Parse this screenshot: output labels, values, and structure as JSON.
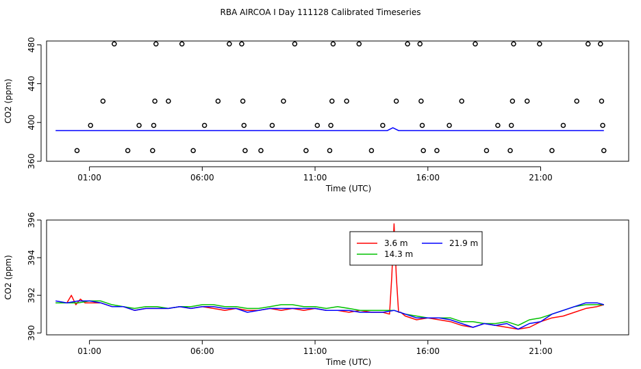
{
  "title": "RBA AIRCOA I  Day 111128  Calibrated Timeseries",
  "colors": {
    "s3_6": "#ff0000",
    "s14_3": "#00c000",
    "s21_9": "#0000ff",
    "axis": "#000000"
  },
  "chart_data": [
    {
      "type": "scatter",
      "xlabel": "Time (UTC)",
      "ylabel": "CO2 (ppm)",
      "xlim": [
        -0.9,
        24.9
      ],
      "ylim": [
        360,
        484
      ],
      "xticks": [
        {
          "v": 1,
          "label": "01:00"
        },
        {
          "v": 6,
          "label": "06:00"
        },
        {
          "v": 11,
          "label": "11:00"
        },
        {
          "v": 16,
          "label": "16:00"
        },
        {
          "v": 21,
          "label": "21:00"
        }
      ],
      "yticks": [
        {
          "v": 360,
          "label": "360"
        },
        {
          "v": 400,
          "label": "400"
        },
        {
          "v": 440,
          "label": "440"
        },
        {
          "v": 480,
          "label": "480"
        }
      ],
      "points": [
        [
          0.45,
          371
        ],
        [
          1.05,
          397
        ],
        [
          1.6,
          422
        ],
        [
          2.1,
          481
        ],
        [
          2.7,
          371
        ],
        [
          3.2,
          397
        ],
        [
          3.8,
          371
        ],
        [
          3.85,
          397
        ],
        [
          3.9,
          422
        ],
        [
          3.95,
          481
        ],
        [
          4.5,
          422
        ],
        [
          5.1,
          481
        ],
        [
          5.6,
          371
        ],
        [
          6.1,
          397
        ],
        [
          6.7,
          422
        ],
        [
          7.2,
          481
        ],
        [
          7.75,
          481
        ],
        [
          7.8,
          422
        ],
        [
          7.85,
          397
        ],
        [
          7.9,
          371
        ],
        [
          8.6,
          371
        ],
        [
          9.1,
          397
        ],
        [
          9.6,
          422
        ],
        [
          10.1,
          481
        ],
        [
          10.6,
          371
        ],
        [
          11.1,
          397
        ],
        [
          11.65,
          371
        ],
        [
          11.7,
          397
        ],
        [
          11.75,
          422
        ],
        [
          11.8,
          481
        ],
        [
          12.4,
          422
        ],
        [
          12.95,
          481
        ],
        [
          13.5,
          371
        ],
        [
          14.0,
          397
        ],
        [
          14.6,
          422
        ],
        [
          15.1,
          481
        ],
        [
          15.65,
          481
        ],
        [
          15.7,
          422
        ],
        [
          15.75,
          397
        ],
        [
          15.8,
          371
        ],
        [
          16.4,
          371
        ],
        [
          16.95,
          397
        ],
        [
          17.5,
          422
        ],
        [
          18.1,
          481
        ],
        [
          18.6,
          371
        ],
        [
          19.1,
          397
        ],
        [
          19.65,
          371
        ],
        [
          19.7,
          397
        ],
        [
          19.75,
          422
        ],
        [
          19.8,
          481
        ],
        [
          20.4,
          422
        ],
        [
          20.95,
          481
        ],
        [
          21.5,
          371
        ],
        [
          22.0,
          397
        ],
        [
          22.6,
          422
        ],
        [
          23.1,
          481
        ],
        [
          23.65,
          481
        ],
        [
          23.7,
          422
        ],
        [
          23.75,
          397
        ],
        [
          23.8,
          371
        ]
      ],
      "lines": [
        {
          "color_key": "s21_9",
          "x": [
            -0.5,
            14.2,
            14.45,
            14.7,
            23.8
          ],
          "y": [
            391.6,
            391.6,
            394.5,
            391.6,
            391.6
          ]
        }
      ]
    },
    {
      "type": "line",
      "xlabel": "Time (UTC)",
      "ylabel": "CO2 (ppm)",
      "xlim": [
        -0.9,
        24.9
      ],
      "ylim": [
        389.9,
        396.0
      ],
      "xticks": [
        {
          "v": 1,
          "label": "01:00"
        },
        {
          "v": 6,
          "label": "06:00"
        },
        {
          "v": 11,
          "label": "11:00"
        },
        {
          "v": 16,
          "label": "16:00"
        },
        {
          "v": 21,
          "label": "21:00"
        }
      ],
      "yticks": [
        {
          "v": 390,
          "label": "390"
        },
        {
          "v": 392,
          "label": "392"
        },
        {
          "v": 394,
          "label": "394"
        },
        {
          "v": 396,
          "label": "396"
        }
      ],
      "legend_position": "top-right",
      "series": [
        {
          "name": "3.6 m",
          "color_key": "s3_6",
          "x": [
            -0.5,
            0,
            0.2,
            0.4,
            0.6,
            0.8,
            1,
            1.5,
            2,
            2.5,
            3,
            3.5,
            4,
            4.5,
            5,
            5.5,
            6,
            6.5,
            7,
            7.5,
            8,
            8.5,
            9,
            9.5,
            10,
            10.5,
            11,
            11.5,
            12,
            12.5,
            13,
            13.5,
            14,
            14.3,
            14.4,
            14.5,
            14.6,
            14.7,
            14.8,
            15,
            15.5,
            16,
            16.5,
            17,
            17.5,
            18,
            18.5,
            19,
            19.5,
            20,
            20.5,
            21,
            21.5,
            22,
            22.5,
            23,
            23.5,
            23.8
          ],
          "y": [
            391.6,
            391.6,
            392.0,
            391.5,
            391.8,
            391.6,
            391.6,
            391.6,
            391.4,
            391.4,
            391.2,
            391.3,
            391.3,
            391.3,
            391.4,
            391.3,
            391.4,
            391.3,
            391.2,
            391.3,
            391.2,
            391.2,
            391.3,
            391.2,
            391.3,
            391.2,
            391.3,
            391.2,
            391.2,
            391.1,
            391.2,
            391.1,
            391.1,
            391.0,
            393.0,
            395.8,
            393.0,
            391.1,
            391.1,
            390.9,
            390.7,
            390.8,
            390.7,
            390.6,
            390.4,
            390.3,
            390.5,
            390.4,
            390.3,
            390.2,
            390.3,
            390.6,
            390.8,
            390.9,
            391.1,
            391.3,
            391.4,
            391.5
          ]
        },
        {
          "name": "14.3 m",
          "color_key": "s14_3",
          "x": [
            -0.5,
            0,
            0.5,
            1,
            1.5,
            2,
            2.5,
            3,
            3.5,
            4,
            4.5,
            5,
            5.5,
            6,
            6.5,
            7,
            7.5,
            8,
            8.5,
            9,
            9.5,
            10,
            10.5,
            11,
            11.5,
            12,
            12.5,
            13,
            13.5,
            14,
            14.5,
            15,
            15.5,
            16,
            16.5,
            17,
            17.5,
            18,
            18.5,
            19,
            19.5,
            20,
            20.5,
            21,
            21.5,
            22,
            22.5,
            23,
            23.5,
            23.8
          ],
          "y": [
            391.6,
            391.6,
            391.6,
            391.7,
            391.7,
            391.5,
            391.4,
            391.3,
            391.4,
            391.4,
            391.3,
            391.4,
            391.4,
            391.5,
            391.5,
            391.4,
            391.4,
            391.3,
            391.3,
            391.4,
            391.5,
            391.5,
            391.4,
            391.4,
            391.3,
            391.4,
            391.3,
            391.2,
            391.2,
            391.2,
            391.2,
            391.0,
            390.9,
            390.8,
            390.8,
            390.8,
            390.6,
            390.6,
            390.5,
            390.5,
            390.6,
            390.4,
            390.7,
            390.8,
            391.0,
            391.2,
            391.4,
            391.5,
            391.5,
            391.5
          ]
        },
        {
          "name": "21.9 m",
          "color_key": "s21_9",
          "x": [
            -0.5,
            0,
            0.5,
            1,
            1.5,
            2,
            2.5,
            3,
            3.5,
            4,
            4.5,
            5,
            5.5,
            6,
            6.5,
            7,
            7.5,
            8,
            8.5,
            9,
            9.5,
            10,
            10.5,
            11,
            11.5,
            12,
            12.5,
            13,
            13.5,
            14,
            14.5,
            15,
            15.5,
            16,
            16.5,
            17,
            17.5,
            18,
            18.5,
            19,
            19.5,
            20,
            20.5,
            21,
            21.5,
            22,
            22.5,
            23,
            23.5,
            23.8
          ],
          "y": [
            391.7,
            391.6,
            391.7,
            391.7,
            391.6,
            391.4,
            391.4,
            391.2,
            391.3,
            391.3,
            391.3,
            391.4,
            391.3,
            391.4,
            391.4,
            391.3,
            391.3,
            391.1,
            391.2,
            391.3,
            391.3,
            391.3,
            391.3,
            391.3,
            391.2,
            391.2,
            391.2,
            391.1,
            391.1,
            391.1,
            391.2,
            391.0,
            390.8,
            390.8,
            390.8,
            390.7,
            390.5,
            390.3,
            390.5,
            390.4,
            390.5,
            390.2,
            390.5,
            390.6,
            391.0,
            391.2,
            391.4,
            391.6,
            391.6,
            391.5
          ]
        }
      ]
    }
  ]
}
